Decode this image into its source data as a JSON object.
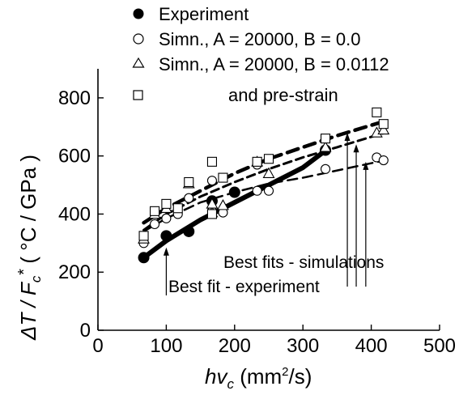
{
  "chart_data": {
    "type": "scatter",
    "xlabel": {
      "main": "hv",
      "sub": "c",
      "units_pre": " (mm",
      "units_sup": "2",
      "units_post": "/s)"
    },
    "ylabel": {
      "main": "ΔT / F",
      "sub": "c",
      "star": "*",
      "units": " ( °C / GPa )"
    },
    "xlim": [
      0,
      500
    ],
    "ylim": [
      0,
      900
    ],
    "x_ticks": [
      0,
      100,
      200,
      300,
      400,
      500
    ],
    "y_ticks": [
      0,
      200,
      400,
      600,
      800
    ],
    "x_tick_labels": [
      "0",
      "100",
      "200",
      "300",
      "400",
      "500"
    ],
    "y_tick_labels": [
      "0",
      "200",
      "400",
      "600",
      "800"
    ],
    "grid": false,
    "legend_position": "top",
    "series": [
      {
        "name": "Experiment",
        "marker": "filled-circle",
        "points": [
          [
            67,
            250
          ],
          [
            100,
            325
          ],
          [
            133,
            340
          ],
          [
            167,
            445
          ],
          [
            200,
            475
          ],
          [
            333,
            620
          ]
        ]
      },
      {
        "name": "Simn., A = 20000, B = 0.0",
        "marker": "open-circle",
        "points": [
          [
            67,
            300
          ],
          [
            83,
            365
          ],
          [
            100,
            385
          ],
          [
            117,
            400
          ],
          [
            133,
            455
          ],
          [
            167,
            410
          ],
          [
            167,
            515
          ],
          [
            183,
            405
          ],
          [
            233,
            480
          ],
          [
            233,
            570
          ],
          [
            250,
            480
          ],
          [
            333,
            555
          ],
          [
            408,
            595
          ],
          [
            418,
            585
          ]
        ]
      },
      {
        "name": "Simn., A = 20000, B = 0.0112",
        "marker": "open-triangle",
        "points": [
          [
            67,
            315
          ],
          [
            83,
            400
          ],
          [
            100,
            420
          ],
          [
            133,
            505
          ],
          [
            167,
            405
          ],
          [
            167,
            435
          ],
          [
            183,
            430
          ],
          [
            233,
            580
          ],
          [
            250,
            540
          ],
          [
            333,
            630
          ],
          [
            408,
            680
          ],
          [
            418,
            690
          ]
        ]
      },
      {
        "name": "and pre-strain",
        "marker": "open-square",
        "points": [
          [
            67,
            325
          ],
          [
            83,
            410
          ],
          [
            100,
            435
          ],
          [
            117,
            420
          ],
          [
            133,
            510
          ],
          [
            167,
            580
          ],
          [
            167,
            400
          ],
          [
            183,
            525
          ],
          [
            233,
            580
          ],
          [
            250,
            590
          ],
          [
            333,
            660
          ],
          [
            408,
            750
          ],
          [
            418,
            710
          ]
        ]
      }
    ],
    "fits": [
      {
        "style": "solid-thick",
        "points": [
          [
            67,
            250
          ],
          [
            100,
            308
          ],
          [
            150,
            380
          ],
          [
            200,
            440
          ],
          [
            250,
            500
          ],
          [
            300,
            560
          ],
          [
            335,
            622
          ]
        ]
      },
      {
        "style": "dash-thick",
        "points": [
          [
            67,
            370
          ],
          [
            100,
            420
          ],
          [
            150,
            480
          ],
          [
            200,
            540
          ],
          [
            250,
            590
          ],
          [
            300,
            630
          ],
          [
            350,
            670
          ],
          [
            420,
            720
          ]
        ]
      },
      {
        "style": "dash",
        "points": [
          [
            67,
            345
          ],
          [
            100,
            400
          ],
          [
            150,
            460
          ],
          [
            200,
            510
          ],
          [
            250,
            555
          ],
          [
            300,
            595
          ],
          [
            350,
            630
          ],
          [
            420,
            680
          ]
        ]
      },
      {
        "style": "dash-thin",
        "points": [
          [
            67,
            340
          ],
          [
            100,
            385
          ],
          [
            150,
            440
          ],
          [
            200,
            475
          ],
          [
            250,
            505
          ],
          [
            300,
            525
          ],
          [
            350,
            550
          ],
          [
            420,
            585
          ]
        ]
      }
    ],
    "annotations": [
      {
        "text": "Best fits - simulations",
        "arrows": [
          [
            365,
            150,
            365,
            680
          ],
          [
            378,
            150,
            378,
            640
          ],
          [
            392,
            150,
            392,
            580
          ]
        ]
      },
      {
        "text": "Best fit - experiment",
        "arrows": [
          [
            100,
            120,
            100,
            285
          ]
        ]
      }
    ]
  }
}
